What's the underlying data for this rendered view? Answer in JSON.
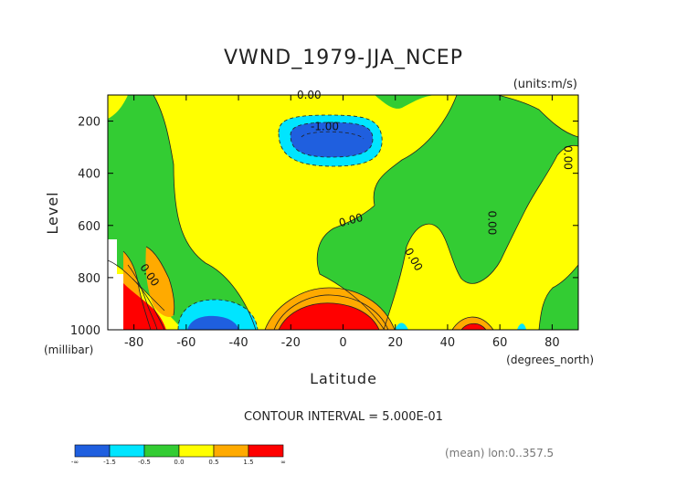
{
  "chart_data": {
    "type": "contour",
    "title": "VWND_1979-JJA_NCEP",
    "units": "(units:m/s)",
    "xlabel": "Latitude",
    "xunit": "(degrees_north)",
    "ylabel": "Level",
    "yunit": "(millibar)",
    "xlim": [
      -90,
      90
    ],
    "ylim": [
      1000,
      100
    ],
    "x_ticks": [
      -80,
      -60,
      -40,
      -20,
      0,
      20,
      40,
      60,
      80
    ],
    "y_ticks": [
      200,
      400,
      600,
      800,
      1000
    ],
    "contour_labels": [
      {
        "text": "0.00",
        "x": -13,
        "y": 100
      },
      {
        "text": "-1.00",
        "x": -7,
        "y": 220
      },
      {
        "text": "0.00",
        "x": 3,
        "y": 580
      },
      {
        "text": "0.00",
        "x": -74,
        "y": 790
      },
      {
        "text": "0.00",
        "x": 27,
        "y": 730
      },
      {
        "text": "0.00",
        "x": 57,
        "y": 590
      },
      {
        "text": "0.00",
        "x": 86,
        "y": 340
      }
    ],
    "contour_interval": "CONTOUR INTERVAL = 5.000E-01",
    "note": "(mean) lon:0..357.5",
    "colorbar": {
      "colors": [
        "#1f5fdf",
        "#00e5ff",
        "#33cc33",
        "#ffff00",
        "#ffaa00",
        "#ff0000"
      ],
      "tick_labels": [
        "-∞",
        "-1.5",
        "-0.5",
        "0.0",
        "0.5",
        "1.5",
        "∞"
      ]
    }
  }
}
